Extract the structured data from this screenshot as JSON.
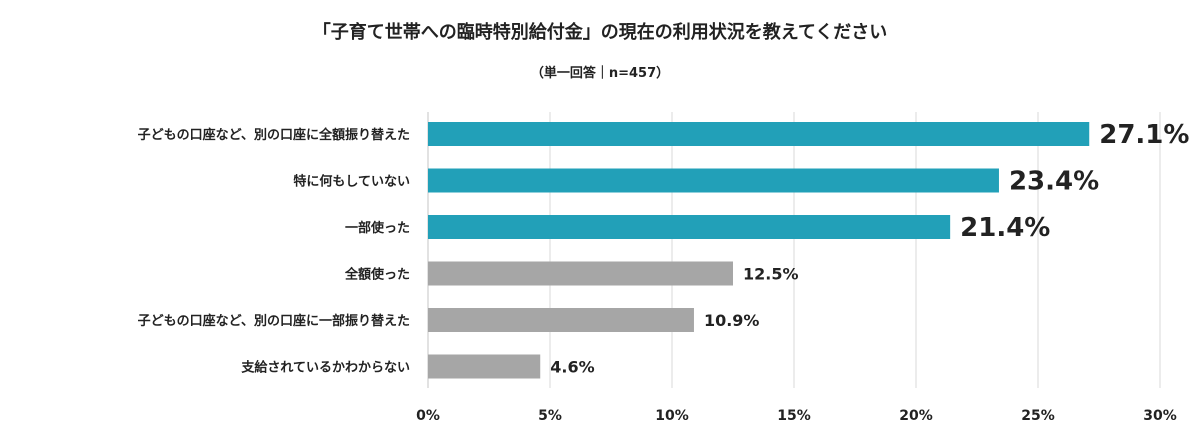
{
  "chart_data": {
    "type": "bar",
    "orientation": "horizontal",
    "title": "「子育て世帯への臨時特別給付金」の現在の利用状況を教えてください",
    "subtitle": "（単一回答｜n=457）",
    "categories": [
      "子どもの口座など、別の口座に全額振り替えた",
      "特に何もしていない",
      "一部使った",
      "全額使った",
      "子どもの口座など、別の口座に一部振り替えた",
      "支給されているかわからない"
    ],
    "values": [
      27.1,
      23.4,
      21.4,
      12.5,
      10.9,
      4.6
    ],
    "labels": [
      "27.1%",
      "23.4%",
      "21.4%",
      "12.5%",
      "10.9%",
      "4.6%"
    ],
    "highlight": [
      true,
      true,
      true,
      false,
      false,
      false
    ],
    "xlim": [
      0,
      30
    ],
    "xticks": [
      0,
      5,
      10,
      15,
      20,
      25,
      30
    ],
    "xtick_labels": [
      "0%",
      "5%",
      "10%",
      "15%",
      "20%",
      "25%",
      "30%"
    ],
    "grid": true,
    "colors": {
      "highlight": "#22a0b8",
      "normal": "#a6a6a6",
      "grid": "#d9d9d9"
    }
  }
}
